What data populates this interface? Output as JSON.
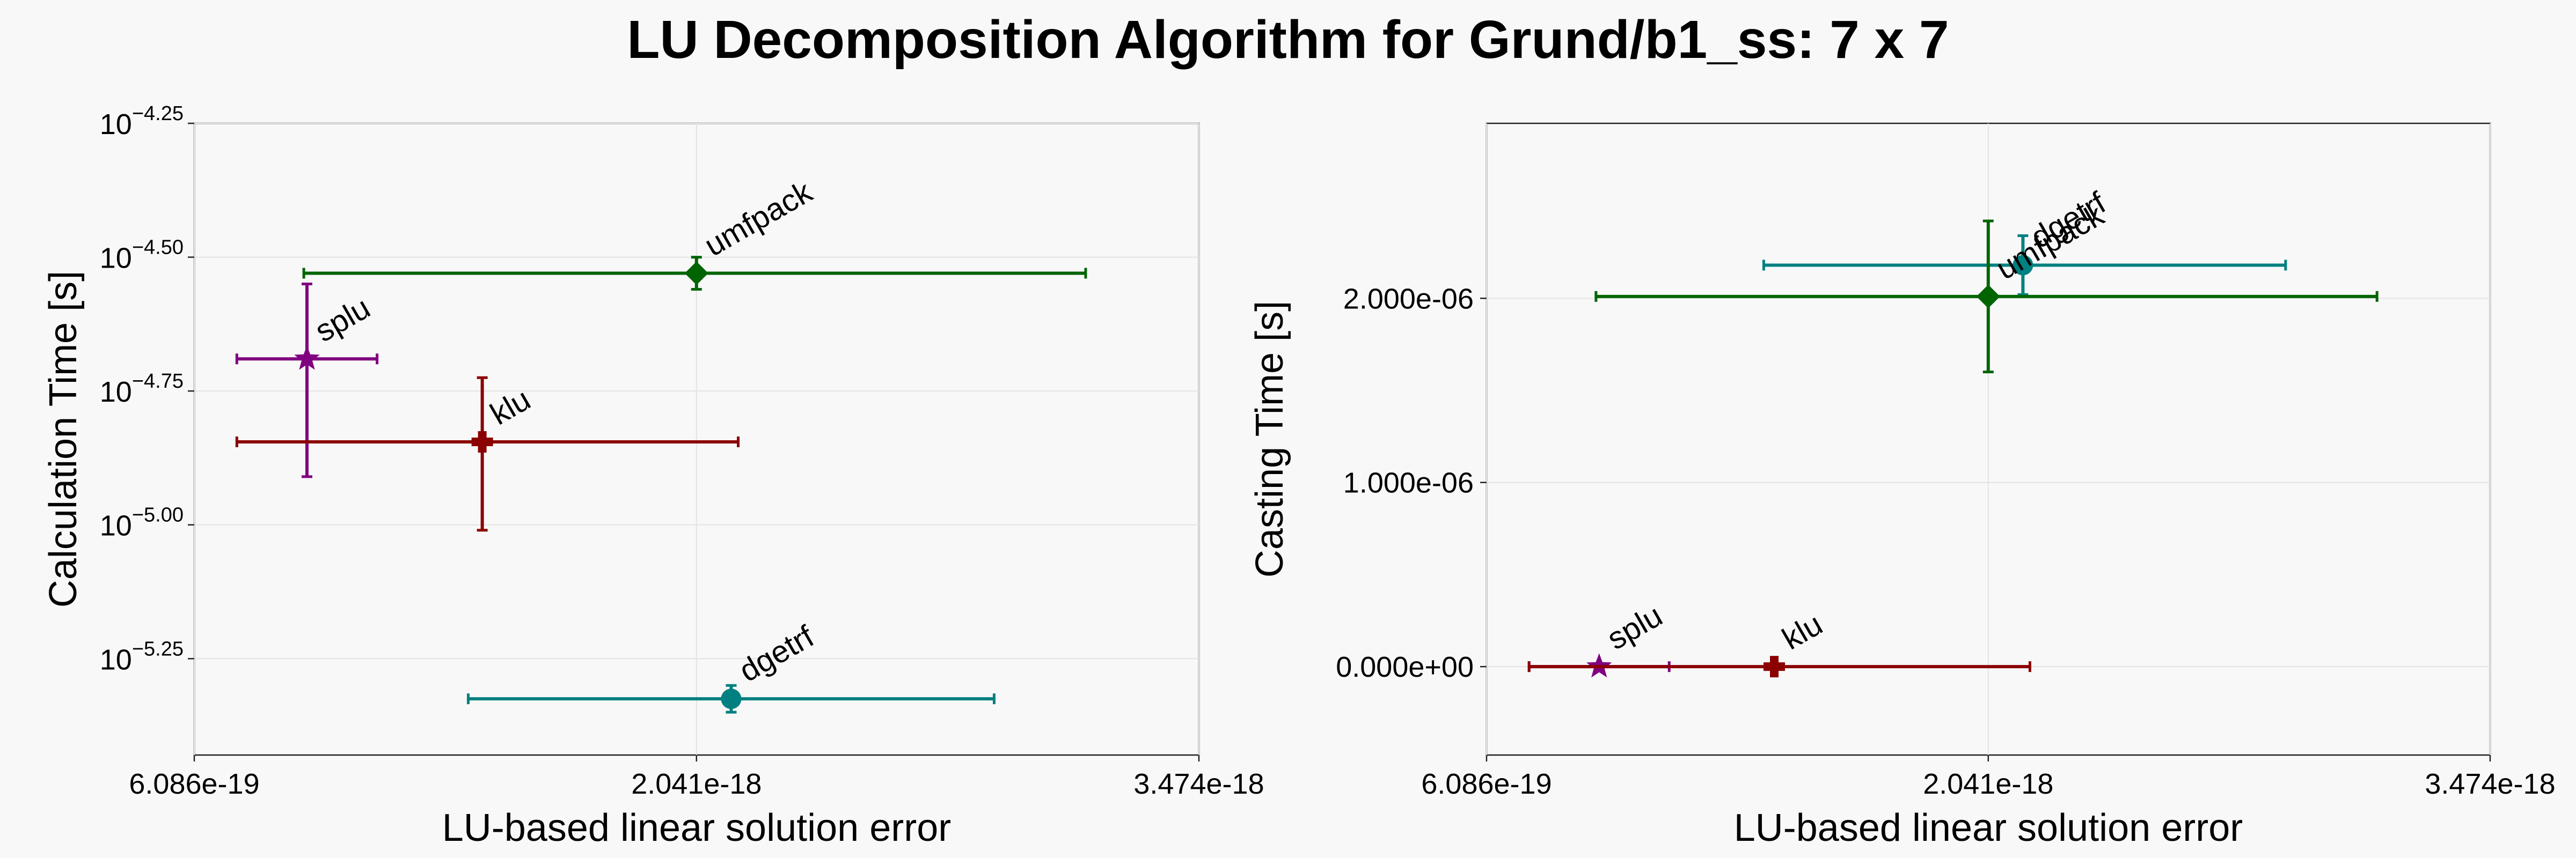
{
  "figure": {
    "title": "LU Decomposition Algorithm for Grund/b1_ss: 7 x 7"
  },
  "chart_data": [
    {
      "type": "scatter",
      "title": "",
      "xlabel": "LU-based linear solution error",
      "ylabel": "Calculation Time [s]",
      "xscale": "linear",
      "yscale": "log",
      "xlim": [
        6.086e-19,
        3.474e-18
      ],
      "ylim_log10": [
        -5.43,
        -4.25
      ],
      "xticks": [
        6.086e-19,
        2.041e-18,
        3.474e-18
      ],
      "xtick_labels": [
        "6.086e-19",
        "2.041e-18",
        "3.474e-18"
      ],
      "yticks_log10": [
        -4.25,
        -4.5,
        -4.75,
        -5.0,
        -5.25
      ],
      "ytick_bases": [
        "10",
        "10",
        "10",
        "10",
        "10"
      ],
      "ytick_exponents": [
        "−4.25",
        "−4.50",
        "−4.75",
        "−5.00",
        "−5.25"
      ],
      "grid": true,
      "series": [
        {
          "label": "umfpack",
          "color": "#006400",
          "marker": "diamond",
          "x": 2.041e-18,
          "y_log10": -4.53,
          "xerr": [
            1.12e-18,
            1.11e-18
          ],
          "yerr_log10": [
            0.03,
            0.03
          ]
        },
        {
          "label": "splu",
          "color": "#800080",
          "marker": "star",
          "x": 9.3e-19,
          "y_log10": -4.69,
          "xerr": [
            2e-19,
            2e-19
          ],
          "yerr_log10": [
            0.22,
            0.14
          ]
        },
        {
          "label": "klu",
          "color": "#8b0000",
          "marker": "plus",
          "x": 1.43e-18,
          "y_log10": -4.845,
          "xerr": [
            7e-19,
            7.3e-19
          ],
          "yerr_log10": [
            0.165,
            0.12
          ]
        },
        {
          "label": "dgetrf",
          "color": "#008080",
          "marker": "circle",
          "x": 2.14e-18,
          "y_log10": -5.325,
          "xerr": [
            7.5e-19,
            7.5e-19
          ],
          "yerr_log10": [
            0.025,
            0.025
          ]
        }
      ]
    },
    {
      "type": "scatter",
      "title": "",
      "xlabel": "LU-based linear solution error",
      "ylabel": "Casting Time [s]",
      "xscale": "linear",
      "yscale": "linear",
      "xlim": [
        6.086e-19,
        3.474e-18
      ],
      "ylim": [
        -4.8e-07,
        2.95e-06
      ],
      "xticks": [
        6.086e-19,
        2.041e-18,
        3.474e-18
      ],
      "xtick_labels": [
        "6.086e-19",
        "2.041e-18",
        "3.474e-18"
      ],
      "yticks": [
        0,
        1e-06,
        2e-06
      ],
      "ytick_labels": [
        "0.000e+00",
        "1.000e-06",
        "2.000e-06"
      ],
      "grid": true,
      "series": [
        {
          "label": "dgetrf",
          "color": "#008080",
          "marker": "circle",
          "x": 2.14e-18,
          "y": 2.18e-06,
          "xerr": [
            7.4e-19,
            7.5e-19
          ],
          "yerr": [
            1.6e-07,
            1.6e-07
          ]
        },
        {
          "label": "umfpack",
          "color": "#006400",
          "marker": "diamond",
          "x": 2.041e-18,
          "y": 2.01e-06,
          "xerr": [
            1.12e-18,
            1.11e-18
          ],
          "yerr": [
            4.1e-07,
            4.1e-07
          ]
        },
        {
          "label": "splu",
          "color": "#800080",
          "marker": "star",
          "x": 9.3e-19,
          "y": 0,
          "xerr": [
            2e-19,
            2e-19
          ],
          "yerr": [
            0,
            0
          ]
        },
        {
          "label": "klu",
          "color": "#8b0000",
          "marker": "plus",
          "x": 1.43e-18,
          "y": 0,
          "xerr": [
            7e-19,
            7.3e-19
          ],
          "yerr": [
            0,
            0
          ]
        }
      ]
    }
  ]
}
